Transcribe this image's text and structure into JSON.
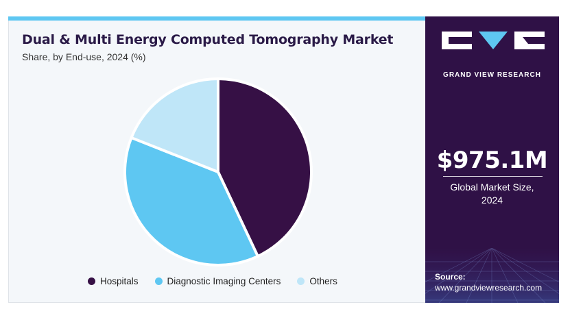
{
  "header": {
    "title": "Dual & Multi Energy Computed Tomography Market",
    "subtitle": "Share, by End-use, 2024 (%)"
  },
  "chart_data": {
    "type": "pie",
    "categories": [
      "Hospitals",
      "Diagnostic Imaging Centers",
      "Others"
    ],
    "values": [
      43,
      38,
      19
    ],
    "colors": [
      "#361045",
      "#5ec7f2",
      "#bfe6f8"
    ],
    "legend_position": "bottom",
    "title": "Dual & Multi Energy Computed Tomography Market",
    "subtitle": "Share, by End-use, 2024 (%)"
  },
  "sidebar": {
    "brand": "GRAND VIEW RESEARCH",
    "market_value": "$975.1M",
    "market_caption": "Global Market Size, 2024",
    "source_label": "Source:",
    "source_url": "www.grandviewresearch.com",
    "background_color": "#2f1146"
  }
}
